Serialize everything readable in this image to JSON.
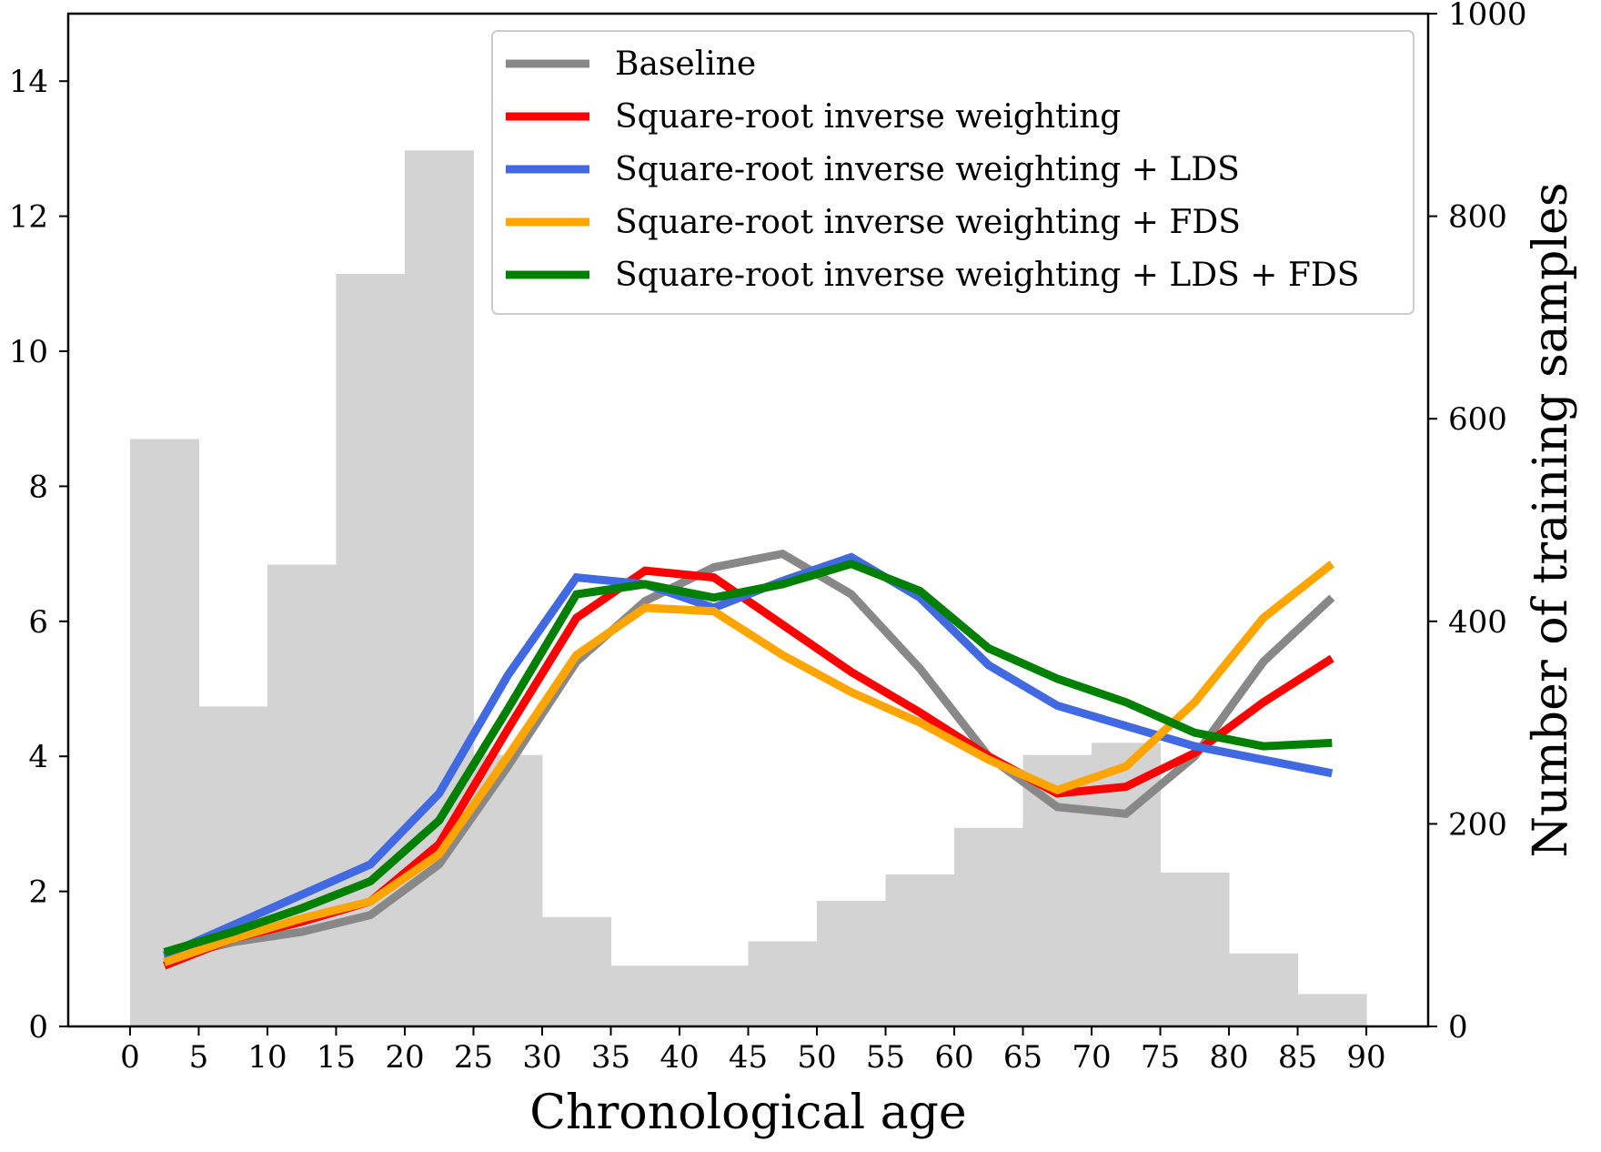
{
  "chart_data": {
    "type": "line",
    "xlabel": "Chronological age",
    "ylabel_right": "Number of training samples",
    "x_ticks": [
      0,
      5,
      10,
      15,
      20,
      25,
      30,
      35,
      40,
      45,
      50,
      55,
      60,
      65,
      70,
      75,
      80,
      85,
      90
    ],
    "y_left_ticks": [
      0,
      2,
      4,
      6,
      8,
      10,
      12,
      14
    ],
    "y_left_lim": [
      0,
      15
    ],
    "y_right_ticks": [
      0,
      200,
      400,
      600,
      800,
      1000
    ],
    "y_right_lim": [
      0,
      1000
    ],
    "xlim": [
      -4.5,
      94.5
    ],
    "legend_position": "top-right",
    "grid": false,
    "histogram": {
      "color": "#d3d3d3",
      "bins": [
        0,
        5,
        10,
        15,
        20,
        25,
        30,
        35,
        40,
        45,
        50,
        55,
        60,
        65,
        70,
        75,
        80,
        85,
        90
      ],
      "counts": [
        580,
        316,
        456,
        743,
        865,
        268,
        108,
        60,
        60,
        84,
        124,
        150,
        196,
        268,
        280,
        152,
        72,
        32
      ]
    },
    "x": [
      2.5,
      7.5,
      12.5,
      17.5,
      22.5,
      27.5,
      32.5,
      37.5,
      42.5,
      47.5,
      52.5,
      57.5,
      62.5,
      67.5,
      72.5,
      77.5,
      82.5,
      87.5
    ],
    "series": [
      {
        "name": "Baseline",
        "color": "#888888",
        "values": [
          1.0,
          1.25,
          1.4,
          1.65,
          2.4,
          3.85,
          5.4,
          6.3,
          6.8,
          7.0,
          6.4,
          5.3,
          4.0,
          3.25,
          3.15,
          4.0,
          5.4,
          6.35
        ]
      },
      {
        "name": "Square-root inverse weighting",
        "color": "#ff0000",
        "values": [
          0.9,
          1.3,
          1.55,
          1.85,
          2.7,
          4.4,
          6.05,
          6.75,
          6.65,
          5.95,
          5.25,
          4.65,
          4.0,
          3.45,
          3.55,
          4.05,
          4.8,
          5.45
        ]
      },
      {
        "name": "Square-root inverse weighting + LDS",
        "color": "#4169e1",
        "values": [
          1.05,
          1.5,
          1.95,
          2.4,
          3.45,
          5.2,
          6.65,
          6.55,
          6.2,
          6.6,
          6.95,
          6.35,
          5.35,
          4.75,
          4.45,
          4.15,
          3.95,
          3.75
        ]
      },
      {
        "name": "Square-root inverse weighting + FDS",
        "color": "#ffa500",
        "values": [
          0.95,
          1.3,
          1.6,
          1.85,
          2.55,
          4.0,
          5.5,
          6.2,
          6.15,
          5.5,
          4.95,
          4.5,
          3.95,
          3.5,
          3.85,
          4.8,
          6.05,
          6.85
        ]
      },
      {
        "name": "Square-root inverse weighting + LDS + FDS",
        "color": "#008000",
        "values": [
          1.1,
          1.4,
          1.75,
          2.15,
          3.05,
          4.7,
          6.4,
          6.55,
          6.35,
          6.55,
          6.85,
          6.45,
          5.6,
          5.15,
          4.8,
          4.35,
          4.15,
          4.2
        ]
      }
    ]
  }
}
